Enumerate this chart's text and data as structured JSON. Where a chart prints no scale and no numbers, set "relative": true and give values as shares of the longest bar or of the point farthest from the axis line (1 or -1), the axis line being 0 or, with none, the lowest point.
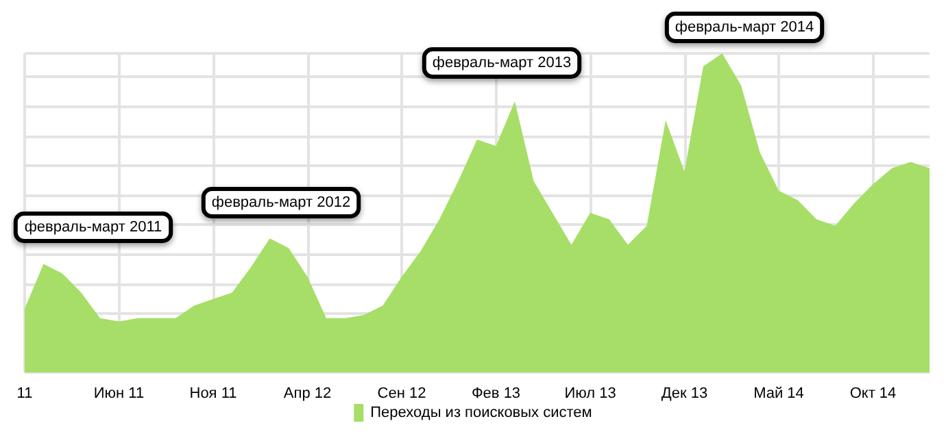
{
  "chart_data": {
    "type": "area",
    "relative": true,
    "grid": true,
    "legend": "bottom",
    "categories": [
      "11",
      null,
      null,
      null,
      null,
      "Июн 11",
      null,
      null,
      null,
      null,
      "Ноя 11",
      null,
      null,
      null,
      null,
      "Апр 12",
      null,
      null,
      null,
      null,
      "Сен 12",
      null,
      null,
      null,
      null,
      "Фев 13",
      null,
      null,
      null,
      null,
      "Июл 13",
      null,
      null,
      null,
      null,
      "Дек 13",
      null,
      null,
      null,
      null,
      "Май 14",
      null,
      null,
      null,
      null,
      "Окт 14",
      null,
      null,
      null
    ],
    "series": [
      {
        "name": "Переходы из поисковых систем",
        "color": "#a6de67",
        "values": [
          0.2,
          0.34,
          0.31,
          0.25,
          0.17,
          0.16,
          0.17,
          0.17,
          0.17,
          0.21,
          0.23,
          0.25,
          0.33,
          0.42,
          0.39,
          0.3,
          0.17,
          0.17,
          0.18,
          0.21,
          0.3,
          0.38,
          0.48,
          0.6,
          0.73,
          0.71,
          0.85,
          0.6,
          0.5,
          0.4,
          0.5,
          0.48,
          0.4,
          0.46,
          0.79,
          0.63,
          0.96,
          1,
          0.9,
          0.69,
          0.57,
          0.54,
          0.48,
          0.46,
          0.53,
          0.59,
          0.64,
          0.66,
          0.64
        ]
      }
    ],
    "annotations": [
      "февраль-март 2011",
      "февраль-март 2012",
      "февраль-март 2013",
      "февраль-март 2014"
    ]
  }
}
